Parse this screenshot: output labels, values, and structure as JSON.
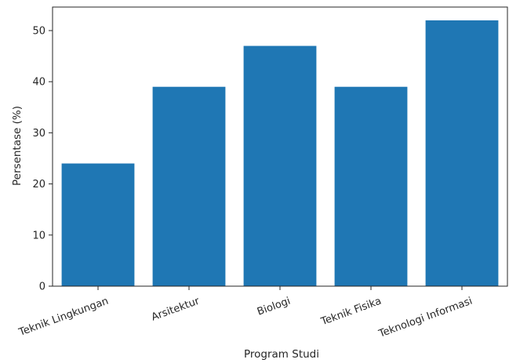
{
  "chart_data": {
    "type": "bar",
    "title": "",
    "xlabel": "Program Studi",
    "ylabel": "Persentase (%)",
    "categories": [
      "Teknik Lingkungan",
      "Arsitektur",
      "Biologi",
      "Teknik Fisika",
      "Teknologi Informasi"
    ],
    "values": [
      24,
      39,
      47,
      39,
      52
    ],
    "ylim": [
      0,
      54.6
    ],
    "yticks": [
      0,
      10,
      20,
      30,
      40,
      50
    ],
    "grid": false,
    "legend": "none",
    "bar_color": "#1f77b4"
  }
}
